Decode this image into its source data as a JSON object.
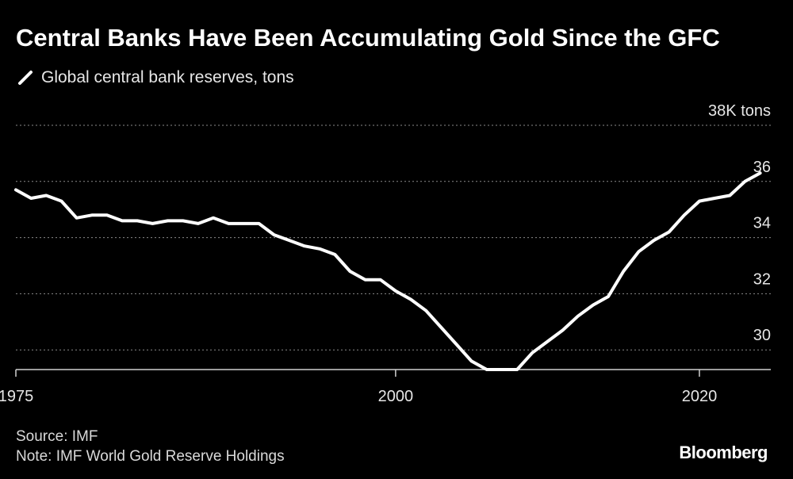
{
  "title": "Central Banks Have Been Accumulating Gold Since the GFC",
  "legend_label": "Global central bank reserves, tons",
  "source": "Source: IMF",
  "note": "Note: IMF World Gold Reserve Holdings",
  "brand": "Bloomberg",
  "chart_data": {
    "type": "line",
    "title": "Central Banks Have Been Accumulating Gold Since the GFC",
    "xlabel": "",
    "ylabel": "",
    "unit_label": "38K tons",
    "xlim": [
      1975,
      2024.7
    ],
    "ylim": [
      29.3,
      38
    ],
    "x_ticks": [
      1975,
      2000,
      2020
    ],
    "y_ticks": [
      30,
      32,
      34,
      36,
      38
    ],
    "y_tick_labels": [
      "30",
      "32",
      "34",
      "36",
      "38K tons"
    ],
    "grid": true,
    "legend_position": "top-left",
    "series": [
      {
        "name": "Global central bank reserves, tons",
        "color": "#ffffff",
        "x": [
          1975,
          1976,
          1977,
          1978,
          1979,
          1980,
          1981,
          1982,
          1983,
          1984,
          1985,
          1986,
          1987,
          1988,
          1989,
          1990,
          1991,
          1992,
          1993,
          1994,
          1995,
          1996,
          1997,
          1998,
          1999,
          2000,
          2001,
          2002,
          2003,
          2004,
          2005,
          2006,
          2007,
          2008,
          2009,
          2010,
          2011,
          2012,
          2013,
          2014,
          2015,
          2016,
          2017,
          2018,
          2019,
          2020,
          2021,
          2022,
          2023,
          2024
        ],
        "values": [
          35.7,
          35.4,
          35.5,
          35.3,
          34.7,
          34.8,
          34.8,
          34.6,
          34.6,
          34.5,
          34.6,
          34.6,
          34.5,
          34.7,
          34.5,
          34.5,
          34.5,
          34.1,
          33.9,
          33.7,
          33.6,
          33.4,
          32.8,
          32.5,
          32.5,
          32.1,
          31.8,
          31.4,
          30.8,
          30.2,
          29.6,
          29.3,
          29.3,
          29.3,
          29.9,
          30.3,
          30.7,
          31.2,
          31.6,
          31.9,
          32.8,
          33.5,
          33.9,
          34.2,
          34.8,
          35.3,
          35.4,
          35.5,
          36.0,
          36.3
        ]
      }
    ]
  }
}
